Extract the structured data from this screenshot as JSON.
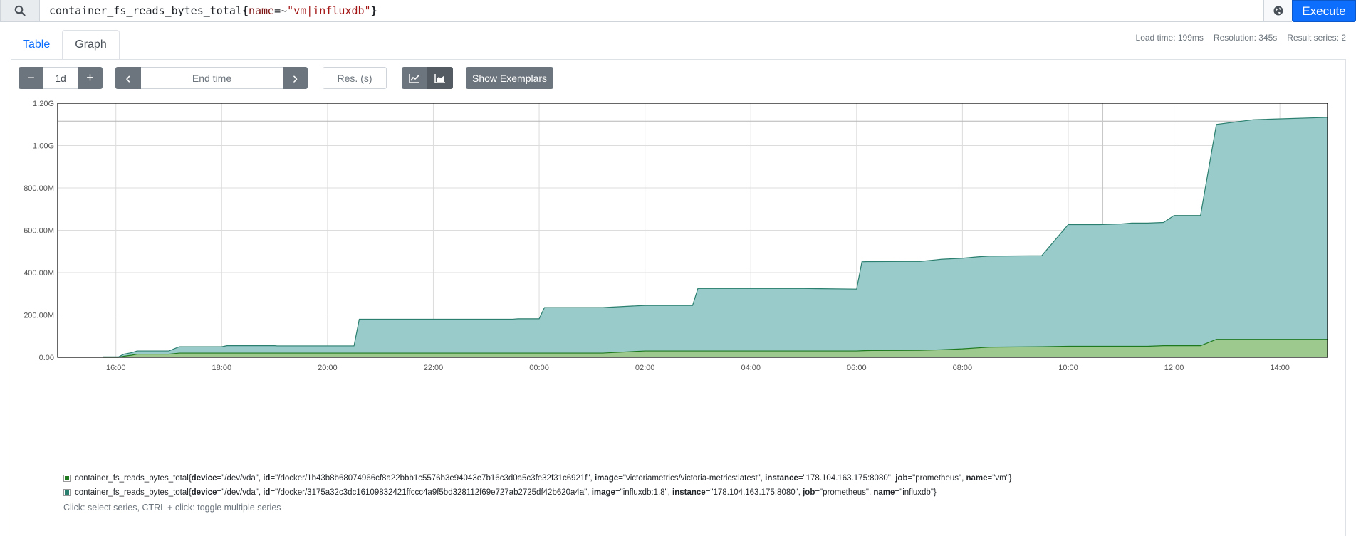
{
  "query": {
    "metric": "container_fs_reads_bytes_total",
    "open_brace": "{",
    "label": "name",
    "operator": "=~",
    "value": "\"vm|influxdb\"",
    "close_brace": "}",
    "execute_label": "Execute"
  },
  "tabs": {
    "table": "Table",
    "graph": "Graph"
  },
  "stats": {
    "load_time": "Load time: 199ms",
    "resolution": "Resolution: 345s",
    "result_series": "Result series: 2"
  },
  "controls": {
    "minus": "−",
    "range": "1d",
    "plus": "+",
    "prev": "‹",
    "end_time_placeholder": "End time",
    "next": "›",
    "res_placeholder": "Res. (s)",
    "exemplars_label": "Show Exemplars"
  },
  "colors": {
    "vm_fill": "#9ec98e",
    "vm_line": "#1f7a1f",
    "influx_fill": "#99cbcb",
    "influx_line": "#2b7f6f",
    "accent": "#0d6efd"
  },
  "chart_data": {
    "type": "area",
    "stacked": true,
    "x_ticks": [
      "16:00",
      "18:00",
      "20:00",
      "22:00",
      "00:00",
      "02:00",
      "04:00",
      "06:00",
      "08:00",
      "10:00",
      "12:00",
      "14:00"
    ],
    "y_ticks": [
      "0.00",
      "200.00M",
      "400.00M",
      "600.00M",
      "800.00M",
      "1.00G",
      "1.20G"
    ],
    "x_range_hours": [
      14.9,
      38.9
    ],
    "ylim": [
      0,
      1200
    ],
    "y_unit": "M",
    "grid": true,
    "series": [
      {
        "name": "vm",
        "color": "#9ec98e",
        "points": [
          [
            15.75,
            0
          ],
          [
            16.05,
            0
          ],
          [
            16.15,
            5
          ],
          [
            16.3,
            10
          ],
          [
            16.4,
            15
          ],
          [
            17.0,
            15
          ],
          [
            17.2,
            20
          ],
          [
            21.0,
            20
          ],
          [
            23.5,
            20
          ],
          [
            25.2,
            20
          ],
          [
            26.0,
            30
          ],
          [
            29.0,
            30
          ],
          [
            30.0,
            30
          ],
          [
            30.2,
            32
          ],
          [
            31.2,
            33
          ],
          [
            31.5,
            35
          ],
          [
            32.0,
            40
          ],
          [
            32.5,
            48
          ],
          [
            33.5,
            50
          ],
          [
            34.0,
            52
          ],
          [
            35.5,
            52
          ],
          [
            35.8,
            55
          ],
          [
            36.5,
            55
          ],
          [
            36.8,
            85
          ],
          [
            38.9,
            85
          ]
        ]
      },
      {
        "name": "influxdb",
        "color": "#99cbcb",
        "points": [
          [
            15.75,
            2
          ],
          [
            16.05,
            2
          ],
          [
            16.15,
            10
          ],
          [
            16.3,
            12
          ],
          [
            16.4,
            15
          ],
          [
            17.0,
            15
          ],
          [
            17.2,
            30
          ],
          [
            18.0,
            30
          ],
          [
            18.1,
            35
          ],
          [
            19.0,
            35
          ],
          [
            19.05,
            34
          ],
          [
            20.5,
            34
          ],
          [
            20.6,
            160
          ],
          [
            23.0,
            160
          ],
          [
            23.5,
            160
          ],
          [
            23.6,
            162
          ],
          [
            24.0,
            162
          ],
          [
            24.1,
            215
          ],
          [
            25.2,
            215
          ],
          [
            25.4,
            215
          ],
          [
            26.0,
            215
          ],
          [
            26.2,
            215
          ],
          [
            26.9,
            215
          ],
          [
            27.0,
            295
          ],
          [
            29.0,
            295
          ],
          [
            30.0,
            292
          ],
          [
            30.1,
            420
          ],
          [
            30.3,
            420
          ],
          [
            31.2,
            420
          ],
          [
            31.6,
            427
          ],
          [
            32.0,
            428
          ],
          [
            32.3,
            430
          ],
          [
            33.5,
            430
          ],
          [
            34.0,
            575
          ],
          [
            34.6,
            575
          ],
          [
            35.0,
            578
          ],
          [
            35.2,
            582
          ],
          [
            35.8,
            582
          ],
          [
            36.0,
            615
          ],
          [
            36.5,
            615
          ],
          [
            36.8,
            1015
          ],
          [
            37.5,
            1037
          ],
          [
            38.9,
            1048
          ]
        ]
      }
    ],
    "reference_line": 1115
  },
  "legend": [
    {
      "color": "#1f7a1f",
      "prefix": "container_fs_reads_bytes_total{",
      "labels": [
        {
          "k": "device",
          "v": "\"/dev/vda\""
        },
        {
          "k": "id",
          "v": "\"/docker/1b43b8b68074966cf8a22bbb1c5576b3e94043e7b16c3d0a5c3fe32f31c6921f\""
        },
        {
          "k": "image",
          "v": "\"victoriametrics/victoria-metrics:latest\""
        },
        {
          "k": "instance",
          "v": "\"178.104.163.175:8080\""
        },
        {
          "k": "job",
          "v": "\"prometheus\""
        },
        {
          "k": "name",
          "v": "\"vm\""
        }
      ],
      "suffix": "}"
    },
    {
      "color": "#2b7f6f",
      "prefix": "container_fs_reads_bytes_total{",
      "labels": [
        {
          "k": "device",
          "v": "\"/dev/vda\""
        },
        {
          "k": "id",
          "v": "\"/docker/3175a32c3dc16109832421ffccc4a9f5bd328112f69e727ab2725df42b620a4a\""
        },
        {
          "k": "image",
          "v": "\"influxdb:1.8\""
        },
        {
          "k": "instance",
          "v": "\"178.104.163.175:8080\""
        },
        {
          "k": "job",
          "v": "\"prometheus\""
        },
        {
          "k": "name",
          "v": "\"influxdb\""
        }
      ],
      "suffix": "}"
    }
  ],
  "hint": "Click: select series, CTRL + click: toggle multiple series"
}
